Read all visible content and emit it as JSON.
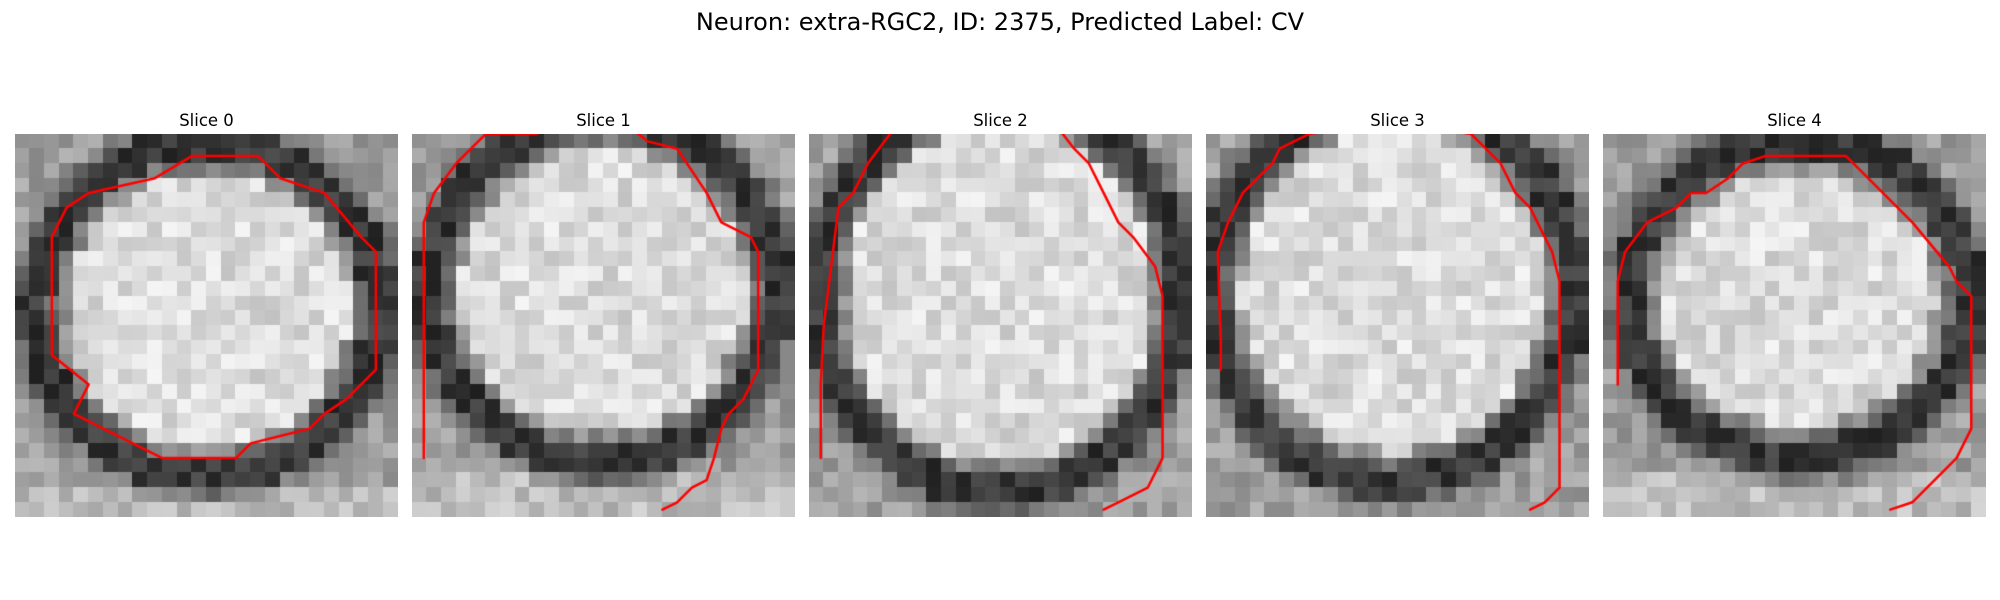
{
  "figure": {
    "title": "Neuron: extra-RGC2, ID: 2375, Predicted Label: CV",
    "contour_color": "#ff0000",
    "colormap": "gray",
    "grid": 26
  },
  "slices": [
    {
      "title": "Slice 0",
      "cx": 13.1,
      "cy": 12.0,
      "rx": 11.7,
      "ry": 11.3,
      "thick": 2.1,
      "bot_bright": true,
      "seed": 11,
      "contour": [
        [
          5,
          17
        ],
        [
          2.5,
          15
        ],
        [
          2.5,
          7
        ],
        [
          3.5,
          5
        ],
        [
          5,
          4
        ],
        [
          9.5,
          3
        ],
        [
          12,
          1.5
        ],
        [
          16.5,
          1.5
        ],
        [
          18,
          3
        ],
        [
          21,
          4
        ],
        [
          23.5,
          7
        ],
        [
          24.5,
          8
        ],
        [
          24.5,
          16
        ],
        [
          22.5,
          18
        ],
        [
          21,
          19
        ],
        [
          20,
          20
        ],
        [
          18,
          20.5
        ],
        [
          16,
          21
        ],
        [
          15,
          22
        ],
        [
          10,
          22
        ],
        [
          8,
          21
        ],
        [
          4,
          19
        ],
        [
          5,
          17
        ]
      ]
    },
    {
      "title": "Slice 1",
      "cx": 13.0,
      "cy": 10.7,
      "rx": 11.8,
      "ry": 11.7,
      "thick": 2.1,
      "bot_bright": true,
      "seed": 23,
      "contour": [
        [
          0.8,
          22
        ],
        [
          0.8,
          6
        ],
        [
          1.5,
          4
        ],
        [
          3,
          2
        ],
        [
          5,
          0
        ],
        [
          8.5,
          0
        ],
        [
          8.5,
          -0.3
        ],
        [
          15,
          -0.3
        ],
        [
          16,
          0.5
        ],
        [
          18,
          1
        ],
        [
          20,
          4
        ],
        [
          21,
          6
        ],
        [
          23,
          7
        ],
        [
          23.5,
          8
        ],
        [
          23.5,
          16
        ],
        [
          22.5,
          18
        ],
        [
          21.5,
          19
        ],
        [
          21,
          20
        ],
        [
          20.5,
          22
        ],
        [
          20,
          23.5
        ],
        [
          19,
          24
        ],
        [
          18,
          25
        ],
        [
          17,
          25.5
        ]
      ]
    },
    {
      "title": "Slice 2",
      "cx": 13.0,
      "cy": 11.0,
      "rx": 12.3,
      "ry": 13.4,
      "thick": 2.0,
      "bot_bright": false,
      "seed": 37,
      "contour": [
        [
          0.8,
          22
        ],
        [
          0.8,
          17
        ],
        [
          1,
          13
        ],
        [
          2,
          5
        ],
        [
          3,
          4
        ],
        [
          4,
          2
        ],
        [
          5.5,
          0
        ],
        [
          6,
          -0.3
        ],
        [
          10,
          -0.3
        ],
        [
          11,
          -0.3
        ],
        [
          16,
          -0.3
        ],
        [
          17,
          -0.3
        ],
        [
          18,
          1
        ],
        [
          19,
          2
        ],
        [
          20,
          4
        ],
        [
          21,
          6
        ],
        [
          22,
          7
        ],
        [
          23.5,
          9
        ],
        [
          24,
          11
        ],
        [
          24,
          22
        ],
        [
          23,
          24
        ],
        [
          21,
          25
        ],
        [
          20,
          25.5
        ]
      ]
    },
    {
      "title": "Slice 3",
      "cx": 12.7,
      "cy": 10.7,
      "rx": 12.3,
      "ry": 13.0,
      "thick": 2.1,
      "bot_bright": false,
      "seed": 41,
      "contour": [
        [
          1,
          16
        ],
        [
          1,
          14
        ],
        [
          0.8,
          8
        ],
        [
          1.5,
          6
        ],
        [
          2.5,
          4
        ],
        [
          3.5,
          3
        ],
        [
          4.5,
          2
        ],
        [
          5,
          1
        ],
        [
          7,
          0
        ],
        [
          9,
          -0.3
        ],
        [
          15,
          -0.3
        ],
        [
          15,
          -0.3
        ],
        [
          16,
          -0.3
        ],
        [
          18,
          0
        ],
        [
          19,
          1
        ],
        [
          20,
          2
        ],
        [
          21,
          4
        ],
        [
          22,
          5
        ],
        [
          23.5,
          8
        ],
        [
          24,
          10
        ],
        [
          24,
          22
        ],
        [
          24,
          24
        ],
        [
          23,
          25
        ],
        [
          22,
          25.5
        ]
      ]
    },
    {
      "title": "Slice 4",
      "cx": 13.3,
      "cy": 11.2,
      "rx": 11.6,
      "ry": 10.8,
      "thick": 2.3,
      "bot_bright": true,
      "seed": 53,
      "contour": [
        [
          1,
          17
        ],
        [
          1,
          10
        ],
        [
          1.5,
          8
        ],
        [
          3,
          6
        ],
        [
          5,
          5
        ],
        [
          6,
          4
        ],
        [
          7,
          4
        ],
        [
          8.5,
          3
        ],
        [
          9.5,
          2
        ],
        [
          11,
          1.5
        ],
        [
          16.5,
          1.5
        ],
        [
          18,
          3
        ],
        [
          19,
          4
        ],
        [
          21,
          6
        ],
        [
          23.5,
          9
        ],
        [
          24,
          10
        ],
        [
          25,
          11
        ],
        [
          25,
          20
        ],
        [
          24,
          22
        ],
        [
          23,
          23
        ],
        [
          22,
          24
        ],
        [
          21,
          25
        ],
        [
          19.5,
          25.5
        ]
      ]
    }
  ]
}
